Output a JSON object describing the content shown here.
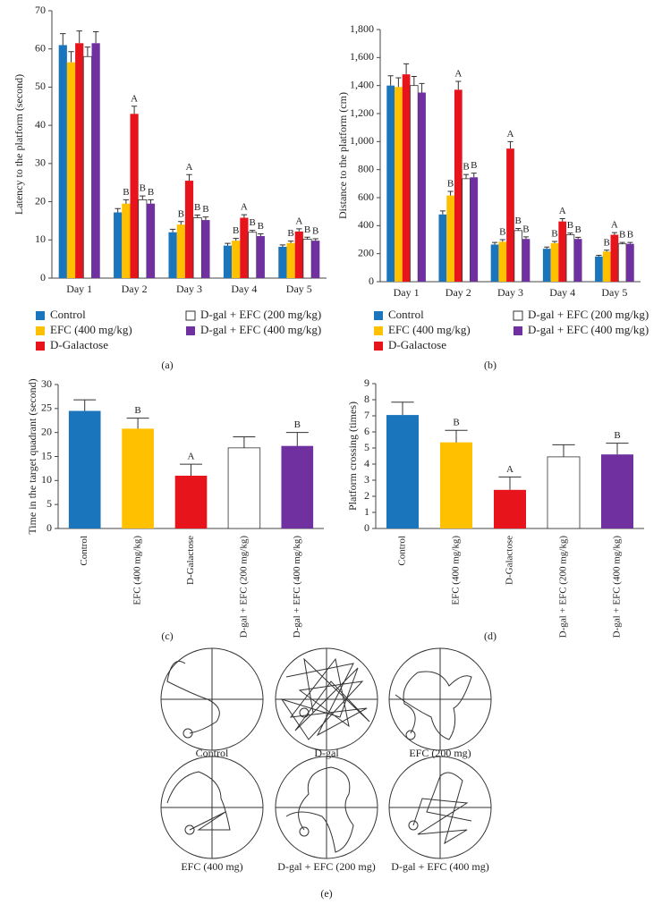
{
  "chart_data": [
    {
      "type": "bar",
      "panel_label": "(a)",
      "ylabel": "Latency to the platform (second)",
      "categories": [
        "Day 1",
        "Day 2",
        "Day 3",
        "Day 4",
        "Day 5"
      ],
      "ylim": [
        0,
        70
      ],
      "yticks": [
        0,
        10,
        20,
        30,
        40,
        50,
        60,
        70
      ],
      "series": [
        {
          "name": "Control",
          "color": "#1a75bc",
          "values": [
            61,
            17.2,
            12,
            8.5,
            8.2
          ],
          "errors": [
            3,
            1,
            0.8,
            0.6,
            0.5
          ],
          "annotations": [
            null,
            null,
            null,
            null,
            null
          ]
        },
        {
          "name": "EFC (400 mg/kg)",
          "color": "#ffc000",
          "values": [
            56.5,
            19.5,
            14,
            9.8,
            9.2
          ],
          "errors": [
            2.8,
            1,
            0.8,
            0.6,
            0.5
          ],
          "annotations": [
            null,
            "B",
            "B",
            "B",
            "B"
          ]
        },
        {
          "name": "D-Galactose",
          "color": "#e8141c",
          "values": [
            61.5,
            43,
            25.5,
            15.8,
            12.2
          ],
          "errors": [
            3.2,
            2,
            1.6,
            0.8,
            0.7
          ],
          "annotations": [
            null,
            "A",
            "A",
            "A",
            "A"
          ]
        },
        {
          "name": "D-gal + EFC (200 mg/kg)",
          "color": "#ffffff",
          "values": [
            58,
            20.5,
            15.8,
            12,
            10.2
          ],
          "errors": [
            2.5,
            1,
            0.7,
            0.5,
            0.5
          ],
          "annotations": [
            null,
            "B",
            "B",
            "B",
            "B"
          ]
        },
        {
          "name": "D-gal + EFC (400 mg/kg)",
          "color": "#7030a0",
          "values": [
            61.5,
            19.5,
            15.2,
            11,
            9.8
          ],
          "errors": [
            3,
            1,
            0.8,
            0.6,
            0.5
          ],
          "annotations": [
            null,
            "B",
            "B",
            "B",
            "B"
          ]
        }
      ]
    },
    {
      "type": "bar",
      "panel_label": "(b)",
      "ylabel": "Distance to the platform (cm)",
      "categories": [
        "Day 1",
        "Day 2",
        "Day 3",
        "Day 4",
        "Day 5"
      ],
      "ylim": [
        0,
        1800
      ],
      "yticks": [
        0,
        200,
        400,
        600,
        800,
        {
          "value": 1000,
          "label": "1,000"
        },
        {
          "value": 1200,
          "label": "1,200"
        },
        {
          "value": 1400,
          "label": "1,400"
        },
        {
          "value": 1600,
          "label": "1,600"
        },
        {
          "value": 1800,
          "label": "1,800"
        }
      ],
      "series": [
        {
          "name": "Control",
          "color": "#1a75bc",
          "values": [
            1400,
            480,
            265,
            235,
            180
          ],
          "errors": [
            70,
            25,
            15,
            12,
            8
          ],
          "annotations": [
            null,
            null,
            null,
            null,
            null
          ]
        },
        {
          "name": "EFC (400 mg/kg)",
          "color": "#ffc000",
          "values": [
            1390,
            615,
            285,
            275,
            215
          ],
          "errors": [
            65,
            30,
            15,
            12,
            10
          ],
          "annotations": [
            null,
            "B",
            "B",
            "B",
            "B"
          ]
        },
        {
          "name": "D-Galactose",
          "color": "#e8141c",
          "values": [
            1480,
            1370,
            950,
            430,
            335
          ],
          "errors": [
            75,
            60,
            50,
            20,
            15
          ],
          "annotations": [
            null,
            "A",
            "A",
            "A",
            "A"
          ]
        },
        {
          "name": "D-gal + EFC (200 mg/kg)",
          "color": "#ffffff",
          "values": [
            1400,
            735,
            365,
            335,
            270
          ],
          "errors": [
            65,
            30,
            15,
            12,
            10
          ],
          "annotations": [
            null,
            "B",
            "B",
            "B",
            "B"
          ]
        },
        {
          "name": "D-gal + EFC (400 mg/kg)",
          "color": "#7030a0",
          "values": [
            1350,
            745,
            305,
            305,
            270
          ],
          "errors": [
            65,
            30,
            15,
            12,
            10
          ],
          "annotations": [
            null,
            "B",
            "B",
            "B",
            "B"
          ]
        }
      ]
    },
    {
      "type": "bar",
      "panel_label": "(c)",
      "ylabel": "Time in the target quadrant (second)",
      "categories": [
        "Control",
        "EFC (400 mg/kg)",
        "D-Galactose",
        "D-gal + EFC (200 mg/kg)",
        "D-gal + EFC (400 mg/kg)"
      ],
      "colors": [
        "#1a75bc",
        "#ffc000",
        "#e8141c",
        "#ffffff",
        "#7030a0"
      ],
      "values": [
        24.5,
        20.8,
        11,
        16.8,
        17.2
      ],
      "errors": [
        2.3,
        2.2,
        2.4,
        2.3,
        2.8
      ],
      "annotations": [
        null,
        "B",
        "A",
        null,
        "B"
      ],
      "ylim": [
        0,
        30
      ],
      "yticks": [
        0,
        5,
        10,
        15,
        20,
        25,
        30
      ]
    },
    {
      "type": "bar",
      "panel_label": "(d)",
      "ylabel": "Platform crossing (times)",
      "categories": [
        "Control",
        "EFC (400 mg/kg)",
        "D-Galactose",
        "D-gal + EFC (200 mg/kg)",
        "D-gal + EFC (400 mg/kg)"
      ],
      "colors": [
        "#1a75bc",
        "#ffc000",
        "#e8141c",
        "#ffffff",
        "#7030a0"
      ],
      "values": [
        7.05,
        5.35,
        2.4,
        4.45,
        4.6
      ],
      "errors": [
        0.8,
        0.75,
        0.8,
        0.75,
        0.7
      ],
      "annotations": [
        null,
        "B",
        "A",
        null,
        "B"
      ],
      "ylim": [
        0,
        9
      ],
      "yticks": [
        0,
        1,
        2,
        3,
        4,
        5,
        6,
        7,
        8,
        9
      ]
    }
  ],
  "tracks": {
    "panel_label": "(e)",
    "labels": [
      "Control",
      "D-gal",
      "EFC (200 mg)",
      "EFC (400 mg)",
      "D-gal + EFC (200 mg)",
      "D-gal + EFC (400 mg)"
    ]
  }
}
